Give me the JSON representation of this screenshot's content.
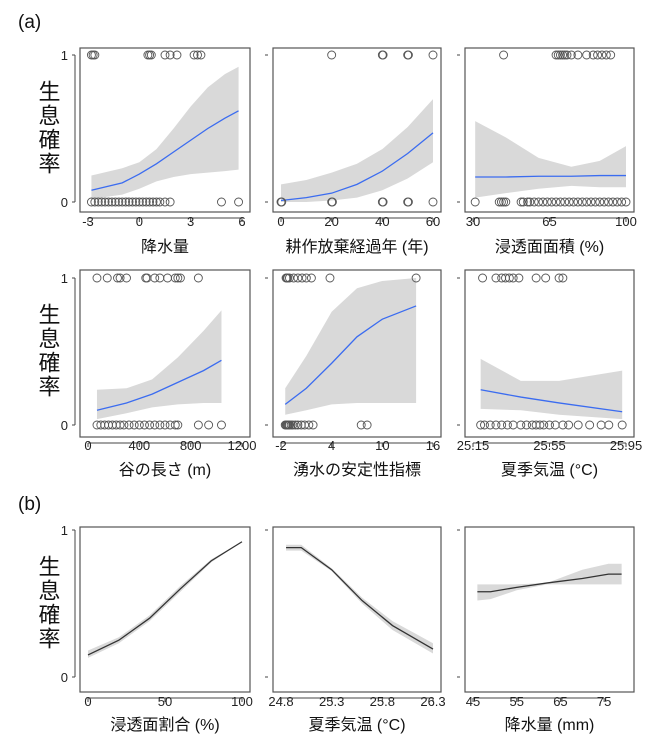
{
  "panel_labels": [
    "(a)",
    "(b)"
  ],
  "y_axis_label": "生息確率",
  "colors": {
    "band": "#d9d9d9",
    "fit_a": "#3b6cf0",
    "fit_b": "#333333",
    "points": "#555555",
    "frame": "#555555"
  },
  "chart_data": [
    {
      "type": "line",
      "group": "(a)",
      "xlabel": "降水量",
      "xlim": [
        -3,
        6
      ],
      "xticks": [
        -3,
        0,
        3,
        6
      ],
      "ylim": [
        0,
        1
      ],
      "yticks": [
        0,
        1
      ],
      "fit": [
        [
          -2.8,
          0.08,
          0.02,
          0.18
        ],
        [
          -1,
          0.13,
          0.05,
          0.23
        ],
        [
          0,
          0.19,
          0.09,
          0.27
        ],
        [
          1,
          0.26,
          0.14,
          0.36
        ],
        [
          2,
          0.34,
          0.17,
          0.5
        ],
        [
          3,
          0.42,
          0.19,
          0.65
        ],
        [
          4,
          0.5,
          0.2,
          0.78
        ],
        [
          5,
          0.57,
          0.21,
          0.87
        ],
        [
          5.8,
          0.62,
          0.22,
          0.92
        ]
      ],
      "presence": [
        -2.8,
        -2.7,
        -2.6,
        0.5,
        0.6,
        0.7,
        1.5,
        1.8,
        2.2,
        3.2,
        3.4,
        3.6
      ],
      "absence": [
        -2.8,
        -2.6,
        -2.4,
        -2.2,
        -2,
        -1.8,
        -1.6,
        -1.4,
        -1.2,
        -1,
        -0.8,
        -0.6,
        -0.4,
        -0.2,
        0,
        0.2,
        0.4,
        0.6,
        0.8,
        1,
        1.2,
        1.5,
        1.8,
        4.8,
        5.8
      ]
    },
    {
      "type": "line",
      "group": "(a)",
      "xlabel": "耕作放棄経過年 (年)",
      "xlim": [
        0,
        60
      ],
      "xticks": [
        0,
        20,
        40,
        60
      ],
      "ylim": [
        0,
        1
      ],
      "yticks": [
        0,
        1
      ],
      "fit": [
        [
          0,
          0.01,
          0,
          0.12
        ],
        [
          10,
          0.03,
          0,
          0.15
        ],
        [
          20,
          0.06,
          0.01,
          0.2
        ],
        [
          30,
          0.12,
          0.03,
          0.26
        ],
        [
          40,
          0.21,
          0.08,
          0.36
        ],
        [
          50,
          0.33,
          0.16,
          0.51
        ],
        [
          60,
          0.47,
          0.27,
          0.7
        ]
      ],
      "presence": [
        20,
        40,
        40.3,
        50,
        50.3,
        60
      ],
      "absence": [
        0,
        0.3,
        20,
        20.3,
        40,
        40.3,
        50,
        50.3,
        60
      ]
    },
    {
      "type": "line",
      "group": "(a)",
      "xlabel": "浸透面面積 (%)",
      "xlim": [
        30,
        100
      ],
      "xticks": [
        30,
        65,
        100
      ],
      "ylim": [
        0,
        1
      ],
      "yticks": [
        0,
        1
      ],
      "fit": [
        [
          31,
          0.17,
          0.03,
          0.55
        ],
        [
          45,
          0.17,
          0.06,
          0.44
        ],
        [
          60,
          0.175,
          0.09,
          0.3
        ],
        [
          75,
          0.175,
          0.11,
          0.24
        ],
        [
          88,
          0.18,
          0.1,
          0.28
        ],
        [
          100,
          0.18,
          0.1,
          0.38
        ]
      ],
      "presence": [
        44,
        68,
        69,
        70,
        71,
        72,
        73,
        75,
        78,
        82,
        85,
        87,
        89,
        91,
        93
      ],
      "absence": [
        31,
        42,
        43,
        44,
        45,
        52,
        53,
        55,
        56,
        58,
        60,
        62,
        64,
        66,
        68,
        70,
        72,
        74,
        76,
        78,
        80,
        82,
        84,
        86,
        88,
        90,
        92,
        94,
        96,
        98,
        100
      ]
    },
    {
      "type": "line",
      "group": "(a)",
      "xlabel": "谷の長さ (m)",
      "xlim": [
        0,
        1200
      ],
      "xticks": [
        0,
        400,
        800,
        1200
      ],
      "ylim": [
        0,
        1
      ],
      "yticks": [
        0,
        1
      ],
      "fit": [
        [
          70,
          0.1,
          0.04,
          0.24
        ],
        [
          300,
          0.15,
          0.08,
          0.25
        ],
        [
          500,
          0.21,
          0.12,
          0.31
        ],
        [
          700,
          0.29,
          0.14,
          0.46
        ],
        [
          900,
          0.37,
          0.15,
          0.64
        ],
        [
          1040,
          0.44,
          0.15,
          0.78
        ]
      ],
      "presence": [
        70,
        150,
        230,
        250,
        300,
        450,
        460,
        520,
        560,
        620,
        680,
        700,
        720,
        860
      ],
      "absence": [
        70,
        100,
        130,
        160,
        190,
        220,
        250,
        280,
        320,
        360,
        400,
        440,
        480,
        520,
        560,
        600,
        640,
        680,
        700,
        860,
        940,
        1040
      ]
    },
    {
      "type": "line",
      "group": "(a)",
      "xlabel": "湧水の安定性指標",
      "xlim": [
        -2,
        16
      ],
      "xticks": [
        -2,
        4,
        10,
        16
      ],
      "ylim": [
        0,
        1
      ],
      "yticks": [
        0,
        1
      ],
      "fit": [
        [
          -1.5,
          0.14,
          0.07,
          0.25
        ],
        [
          1,
          0.25,
          0.1,
          0.47
        ],
        [
          4,
          0.42,
          0.14,
          0.77
        ],
        [
          7,
          0.6,
          0.15,
          0.93
        ],
        [
          10,
          0.72,
          0.15,
          0.98
        ],
        [
          14,
          0.81,
          0.15,
          1
        ]
      ],
      "presence": [
        -1.4,
        -1.3,
        -1.2,
        -1,
        -0.5,
        0,
        0.5,
        1,
        1.6,
        3.8,
        14
      ],
      "absence": [
        -1.5,
        -1.4,
        -1.3,
        -1.2,
        -1.1,
        -1,
        -0.8,
        -0.6,
        -0.3,
        0,
        0.4,
        0.8,
        1.3,
        1.8,
        7.5,
        8.2
      ]
    },
    {
      "type": "line",
      "group": "(a)",
      "xlabel": "夏季気温 (°C)",
      "xlim": [
        25.15,
        25.95
      ],
      "xticks": [
        25.15,
        25.55,
        25.95
      ],
      "ylim": [
        0,
        1
      ],
      "yticks": [
        0,
        1
      ],
      "fit": [
        [
          25.19,
          0.24,
          0.11,
          0.45
        ],
        [
          25.4,
          0.19,
          0.1,
          0.3
        ],
        [
          25.6,
          0.15,
          0.07,
          0.3
        ],
        [
          25.93,
          0.09,
          0.04,
          0.37
        ]
      ],
      "presence": [
        25.2,
        25.27,
        25.3,
        25.32,
        25.34,
        25.36,
        25.39,
        25.48,
        25.53,
        25.6,
        25.62
      ],
      "absence": [
        25.19,
        25.21,
        25.24,
        25.27,
        25.3,
        25.33,
        25.36,
        25.4,
        25.43,
        25.46,
        25.48,
        25.5,
        25.52,
        25.55,
        25.58,
        25.62,
        25.65,
        25.7,
        25.76,
        25.82,
        25.86,
        25.93
      ]
    },
    {
      "type": "line",
      "group": "(b)",
      "xlabel": "浸透面割合 (%)",
      "xlim": [
        0,
        100
      ],
      "xticks": [
        0,
        50,
        100
      ],
      "ylim": [
        0,
        1
      ],
      "yticks": [
        0,
        1
      ],
      "fit": [
        [
          0,
          0.15,
          0.13,
          0.18
        ],
        [
          20,
          0.25,
          0.23,
          0.27
        ],
        [
          40,
          0.4,
          0.38,
          0.42
        ],
        [
          60,
          0.6,
          0.58,
          0.62
        ],
        [
          80,
          0.79,
          0.78,
          0.8
        ],
        [
          100,
          0.92,
          0.92,
          0.92
        ]
      ],
      "presence": [],
      "absence": []
    },
    {
      "type": "line",
      "group": "(b)",
      "xlabel": "夏季気温 (°C)",
      "xlim": [
        24.8,
        26.3
      ],
      "xticks": [
        24.8,
        25.3,
        25.8,
        26.3
      ],
      "ylim": [
        0,
        1
      ],
      "yticks": [
        0,
        1
      ],
      "fit": [
        [
          24.85,
          0.88,
          0.86,
          0.9
        ],
        [
          25.0,
          0.88,
          0.86,
          0.9
        ],
        [
          25.3,
          0.73,
          0.72,
          0.74
        ],
        [
          25.6,
          0.52,
          0.5,
          0.54
        ],
        [
          25.9,
          0.35,
          0.32,
          0.38
        ],
        [
          26.3,
          0.19,
          0.16,
          0.23
        ]
      ],
      "presence": [],
      "absence": []
    },
    {
      "type": "line",
      "group": "(b)",
      "xlabel": "降水量 (mm)",
      "xlim": [
        45,
        80
      ],
      "xticks": [
        45,
        55,
        65,
        75
      ],
      "ylim": [
        0,
        1
      ],
      "yticks": [
        0,
        1
      ],
      "fit": [
        [
          46,
          0.58,
          0.52,
          0.63
        ],
        [
          49,
          0.58,
          0.53,
          0.63
        ],
        [
          55,
          0.61,
          0.59,
          0.63
        ],
        [
          62,
          0.64,
          0.63,
          0.64
        ],
        [
          70,
          0.67,
          0.63,
          0.73
        ],
        [
          76,
          0.7,
          0.63,
          0.77
        ],
        [
          79,
          0.7,
          0.63,
          0.77
        ]
      ],
      "presence": [],
      "absence": []
    }
  ]
}
